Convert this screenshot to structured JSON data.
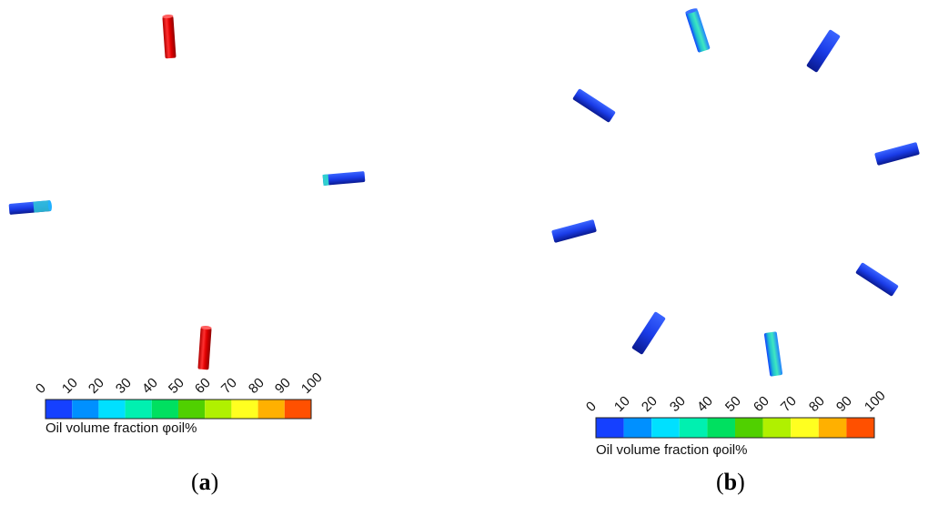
{
  "colorbar": {
    "caption": "Oil volume fraction φoil%",
    "ticks": [
      "0",
      "10",
      "20",
      "30",
      "40",
      "50",
      "60",
      "70",
      "80",
      "90",
      "100"
    ],
    "colors": [
      "#1540ff",
      "#0090ff",
      "#00e0ff",
      "#00f0b0",
      "#00e060",
      "#50d000",
      "#b0f000",
      "#ffff20",
      "#ffb000",
      "#ff5000"
    ]
  },
  "panels": [
    {
      "label_open": "(",
      "label_letter": "a",
      "label_close": ")"
    },
    {
      "label_open": "(",
      "label_letter": "b",
      "label_close": ")"
    }
  ],
  "cylinders": {
    "panel_a": [
      {
        "name": "cylinder-a-top",
        "oil_fraction": 100
      },
      {
        "name": "cylinder-a-left",
        "oil_fraction": 10
      },
      {
        "name": "cylinder-a-right",
        "oil_fraction": 5
      },
      {
        "name": "cylinder-a-bottom",
        "oil_fraction": 100
      }
    ],
    "panel_b": [
      {
        "name": "cylinder-b-1",
        "oil_fraction": 30
      },
      {
        "name": "cylinder-b-2",
        "oil_fraction": 0
      },
      {
        "name": "cylinder-b-3",
        "oil_fraction": 0
      },
      {
        "name": "cylinder-b-4",
        "oil_fraction": 0
      },
      {
        "name": "cylinder-b-5",
        "oil_fraction": 0
      },
      {
        "name": "cylinder-b-6",
        "oil_fraction": 0
      },
      {
        "name": "cylinder-b-7",
        "oil_fraction": 0
      },
      {
        "name": "cylinder-b-8",
        "oil_fraction": 35
      }
    ]
  }
}
